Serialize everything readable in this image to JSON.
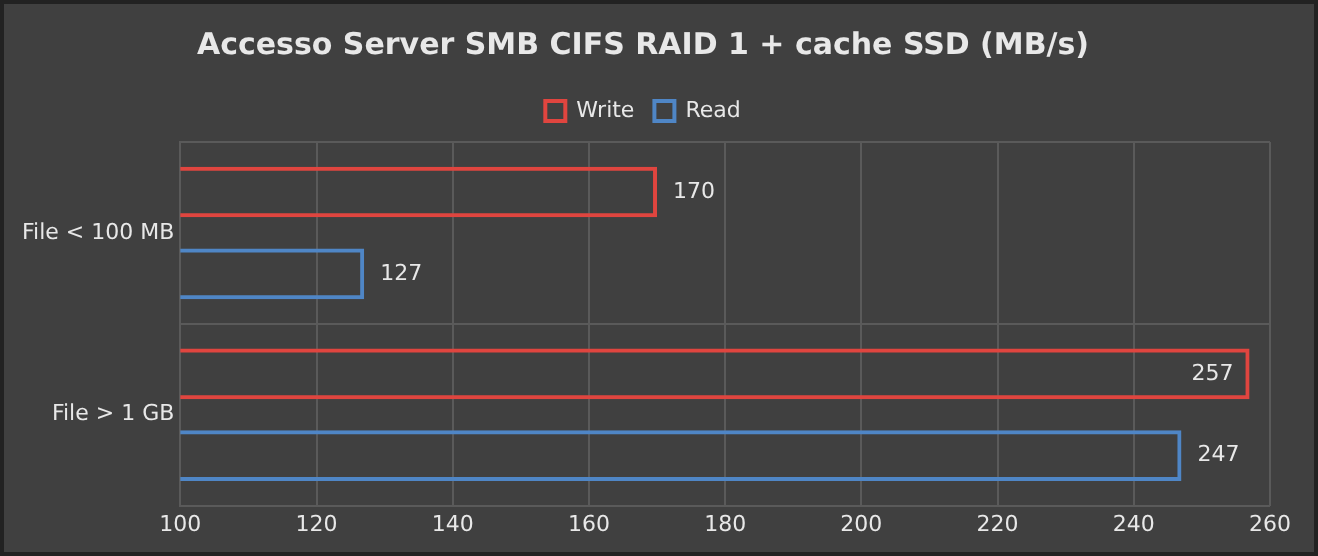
{
  "chart_data": {
    "type": "bar",
    "orientation": "horizontal",
    "title": "Accesso Server SMB CIFS RAID 1 + cache SSD (MB/s)",
    "categories": [
      "File < 100 MB",
      "File > 1 GB"
    ],
    "series": [
      {
        "name": "Write",
        "color": "#e0453f",
        "values": [
          170,
          257
        ]
      },
      {
        "name": "Read",
        "color": "#4f86c6",
        "values": [
          127,
          247
        ]
      }
    ],
    "xlim": [
      100,
      260
    ],
    "xticks": [
      100,
      120,
      140,
      160,
      180,
      200,
      220,
      240,
      260
    ],
    "grid": true,
    "legend": "top",
    "data_labels": true
  }
}
